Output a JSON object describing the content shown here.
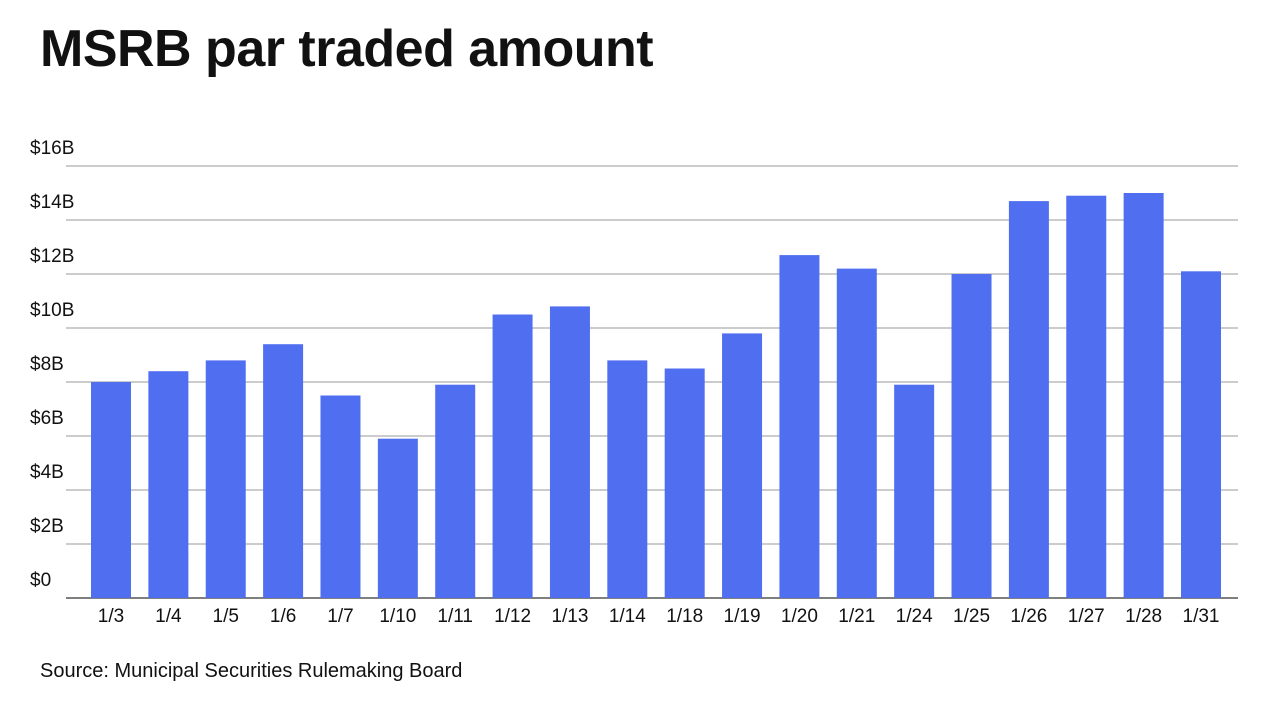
{
  "chart_data": {
    "type": "bar",
    "title": "MSRB par traded amount",
    "xlabel": "",
    "ylabel": "",
    "categories": [
      "1/3",
      "1/4",
      "1/5",
      "1/6",
      "1/7",
      "1/10",
      "1/11",
      "1/12",
      "1/13",
      "1/14",
      "1/18",
      "1/19",
      "1/20",
      "1/21",
      "1/24",
      "1/25",
      "1/26",
      "1/27",
      "1/28",
      "1/31"
    ],
    "values": [
      8.0,
      8.4,
      8.8,
      9.4,
      7.5,
      5.9,
      7.9,
      10.5,
      10.8,
      8.8,
      8.5,
      9.8,
      12.7,
      12.2,
      7.9,
      12.0,
      14.7,
      14.9,
      15.0,
      12.1
    ],
    "ylim": [
      0,
      16
    ],
    "yticks": [
      0,
      2,
      4,
      6,
      8,
      10,
      12,
      14,
      16
    ],
    "ytick_labels": [
      "$0",
      "$2B",
      "$4B",
      "$6B",
      "$8B",
      "$10B",
      "$12B",
      "$14B",
      "$16B"
    ],
    "grid": true,
    "legend": "none",
    "bar_color": "#4f6ff0",
    "grid_color": "#9a9a9a",
    "source": "Source: Municipal Securities Rulemaking Board"
  }
}
